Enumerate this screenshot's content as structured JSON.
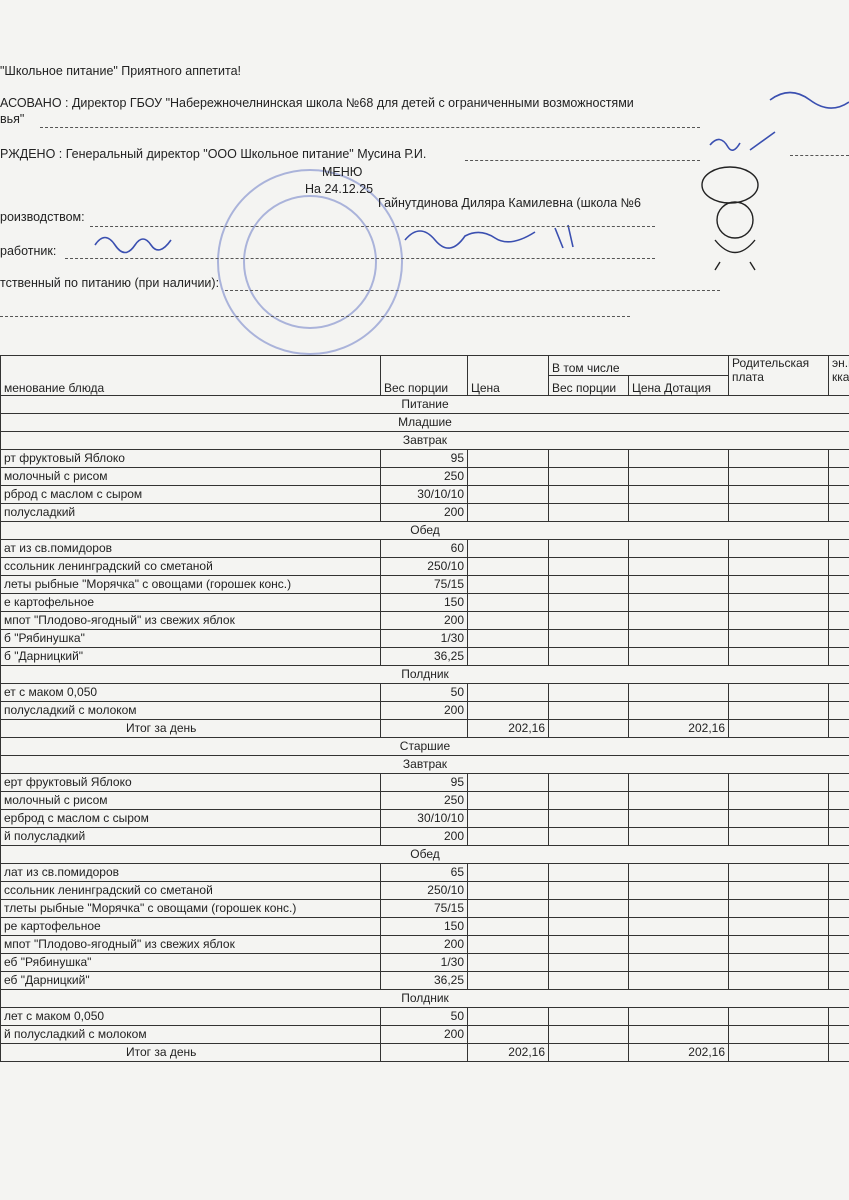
{
  "header": {
    "slogan": "\"Школьное питание\" Приятного аппетита!",
    "approved_by": "АСОВАНО : Директор ГБОУ \"Набережночелнинская школа №68 для детей с ограниченными возможностями",
    "approved_by_cont": "вья\"",
    "confirmed_by": "РЖДЕНО : Генеральный директор \"ООО Школьное питание\" Мусина Р.И.",
    "menu_title": "МЕНЮ",
    "menu_date": "На 24.12.25",
    "production_label": "роизводством:",
    "production_name": "Гайнутдинова Диляра Камилевна (школа №6",
    "worker_label": "работник:",
    "responsible_label": "тственный по питанию (при наличии):"
  },
  "table": {
    "columns": {
      "name": "менование блюда",
      "weight": "Вес порции",
      "price": "Цена",
      "including": "В том числе",
      "sub_weight": "Вес порции",
      "dotation": "Цена Дотация",
      "parent_pay": "Родительская плата",
      "energy": "эн.ц кка"
    },
    "rows": [
      {
        "section": "Питание"
      },
      {
        "section": "Младшие"
      },
      {
        "section": "Завтрак"
      },
      {
        "name": "рт фруктовый Яблоко",
        "weight": "95"
      },
      {
        "name": "молочный с рисом",
        "weight": "250"
      },
      {
        "name": "рброд с маслом с сыром",
        "weight": "30/10/10"
      },
      {
        "name": "полусладкий",
        "weight": "200"
      },
      {
        "section": "Обед"
      },
      {
        "name": "ат из св.помидоров",
        "weight": "60"
      },
      {
        "name": "ссольник ленинградский со сметаной",
        "weight": "250/10"
      },
      {
        "name": "леты рыбные \"Морячка\" с овощами (горошек конс.)",
        "weight": "75/15"
      },
      {
        "name": "е картофельное",
        "weight": "150"
      },
      {
        "name": "мпот \"Плодово-ягодный\" из свежих яблок",
        "weight": "200"
      },
      {
        "name": "б \"Рябинушка\"",
        "weight": "1/30"
      },
      {
        "name": "б \"Дарницкий\"",
        "weight": "36,25"
      },
      {
        "section": "Полдник"
      },
      {
        "name": "ет с маком 0,050",
        "weight": "50"
      },
      {
        "name": "полусладкий с молоком",
        "weight": "200"
      },
      {
        "total": "Итог за день",
        "price": "202,16",
        "dotation": "202,16"
      },
      {
        "section": "Старшие"
      },
      {
        "section": "Завтрак"
      },
      {
        "name": "ерт фруктовый Яблоко",
        "weight": "95"
      },
      {
        "name": "молочный с рисом",
        "weight": "250"
      },
      {
        "name": "ерброд с маслом с сыром",
        "weight": "30/10/10"
      },
      {
        "name": "й полусладкий",
        "weight": "200"
      },
      {
        "section": "Обед"
      },
      {
        "name": "лат из св.помидоров",
        "weight": "65"
      },
      {
        "name": "ссольник ленинградский со сметаной",
        "weight": "250/10"
      },
      {
        "name": "тлеты рыбные \"Морячка\" с овощами (горошек конс.)",
        "weight": "75/15"
      },
      {
        "name": "ре картофельное",
        "weight": "150"
      },
      {
        "name": "мпот \"Плодово-ягодный\" из свежих яблок",
        "weight": "200"
      },
      {
        "name": "еб \"Рябинушка\"",
        "weight": "1/30"
      },
      {
        "name": "еб \"Дарницкий\"",
        "weight": "36,25"
      },
      {
        "section": "Полдник"
      },
      {
        "name": "лет с маком 0,050",
        "weight": "50"
      },
      {
        "name": "й полусладкий с молоком",
        "weight": "200"
      },
      {
        "total": "Итог за день",
        "price": "202,16",
        "dotation": "202,16"
      }
    ]
  }
}
